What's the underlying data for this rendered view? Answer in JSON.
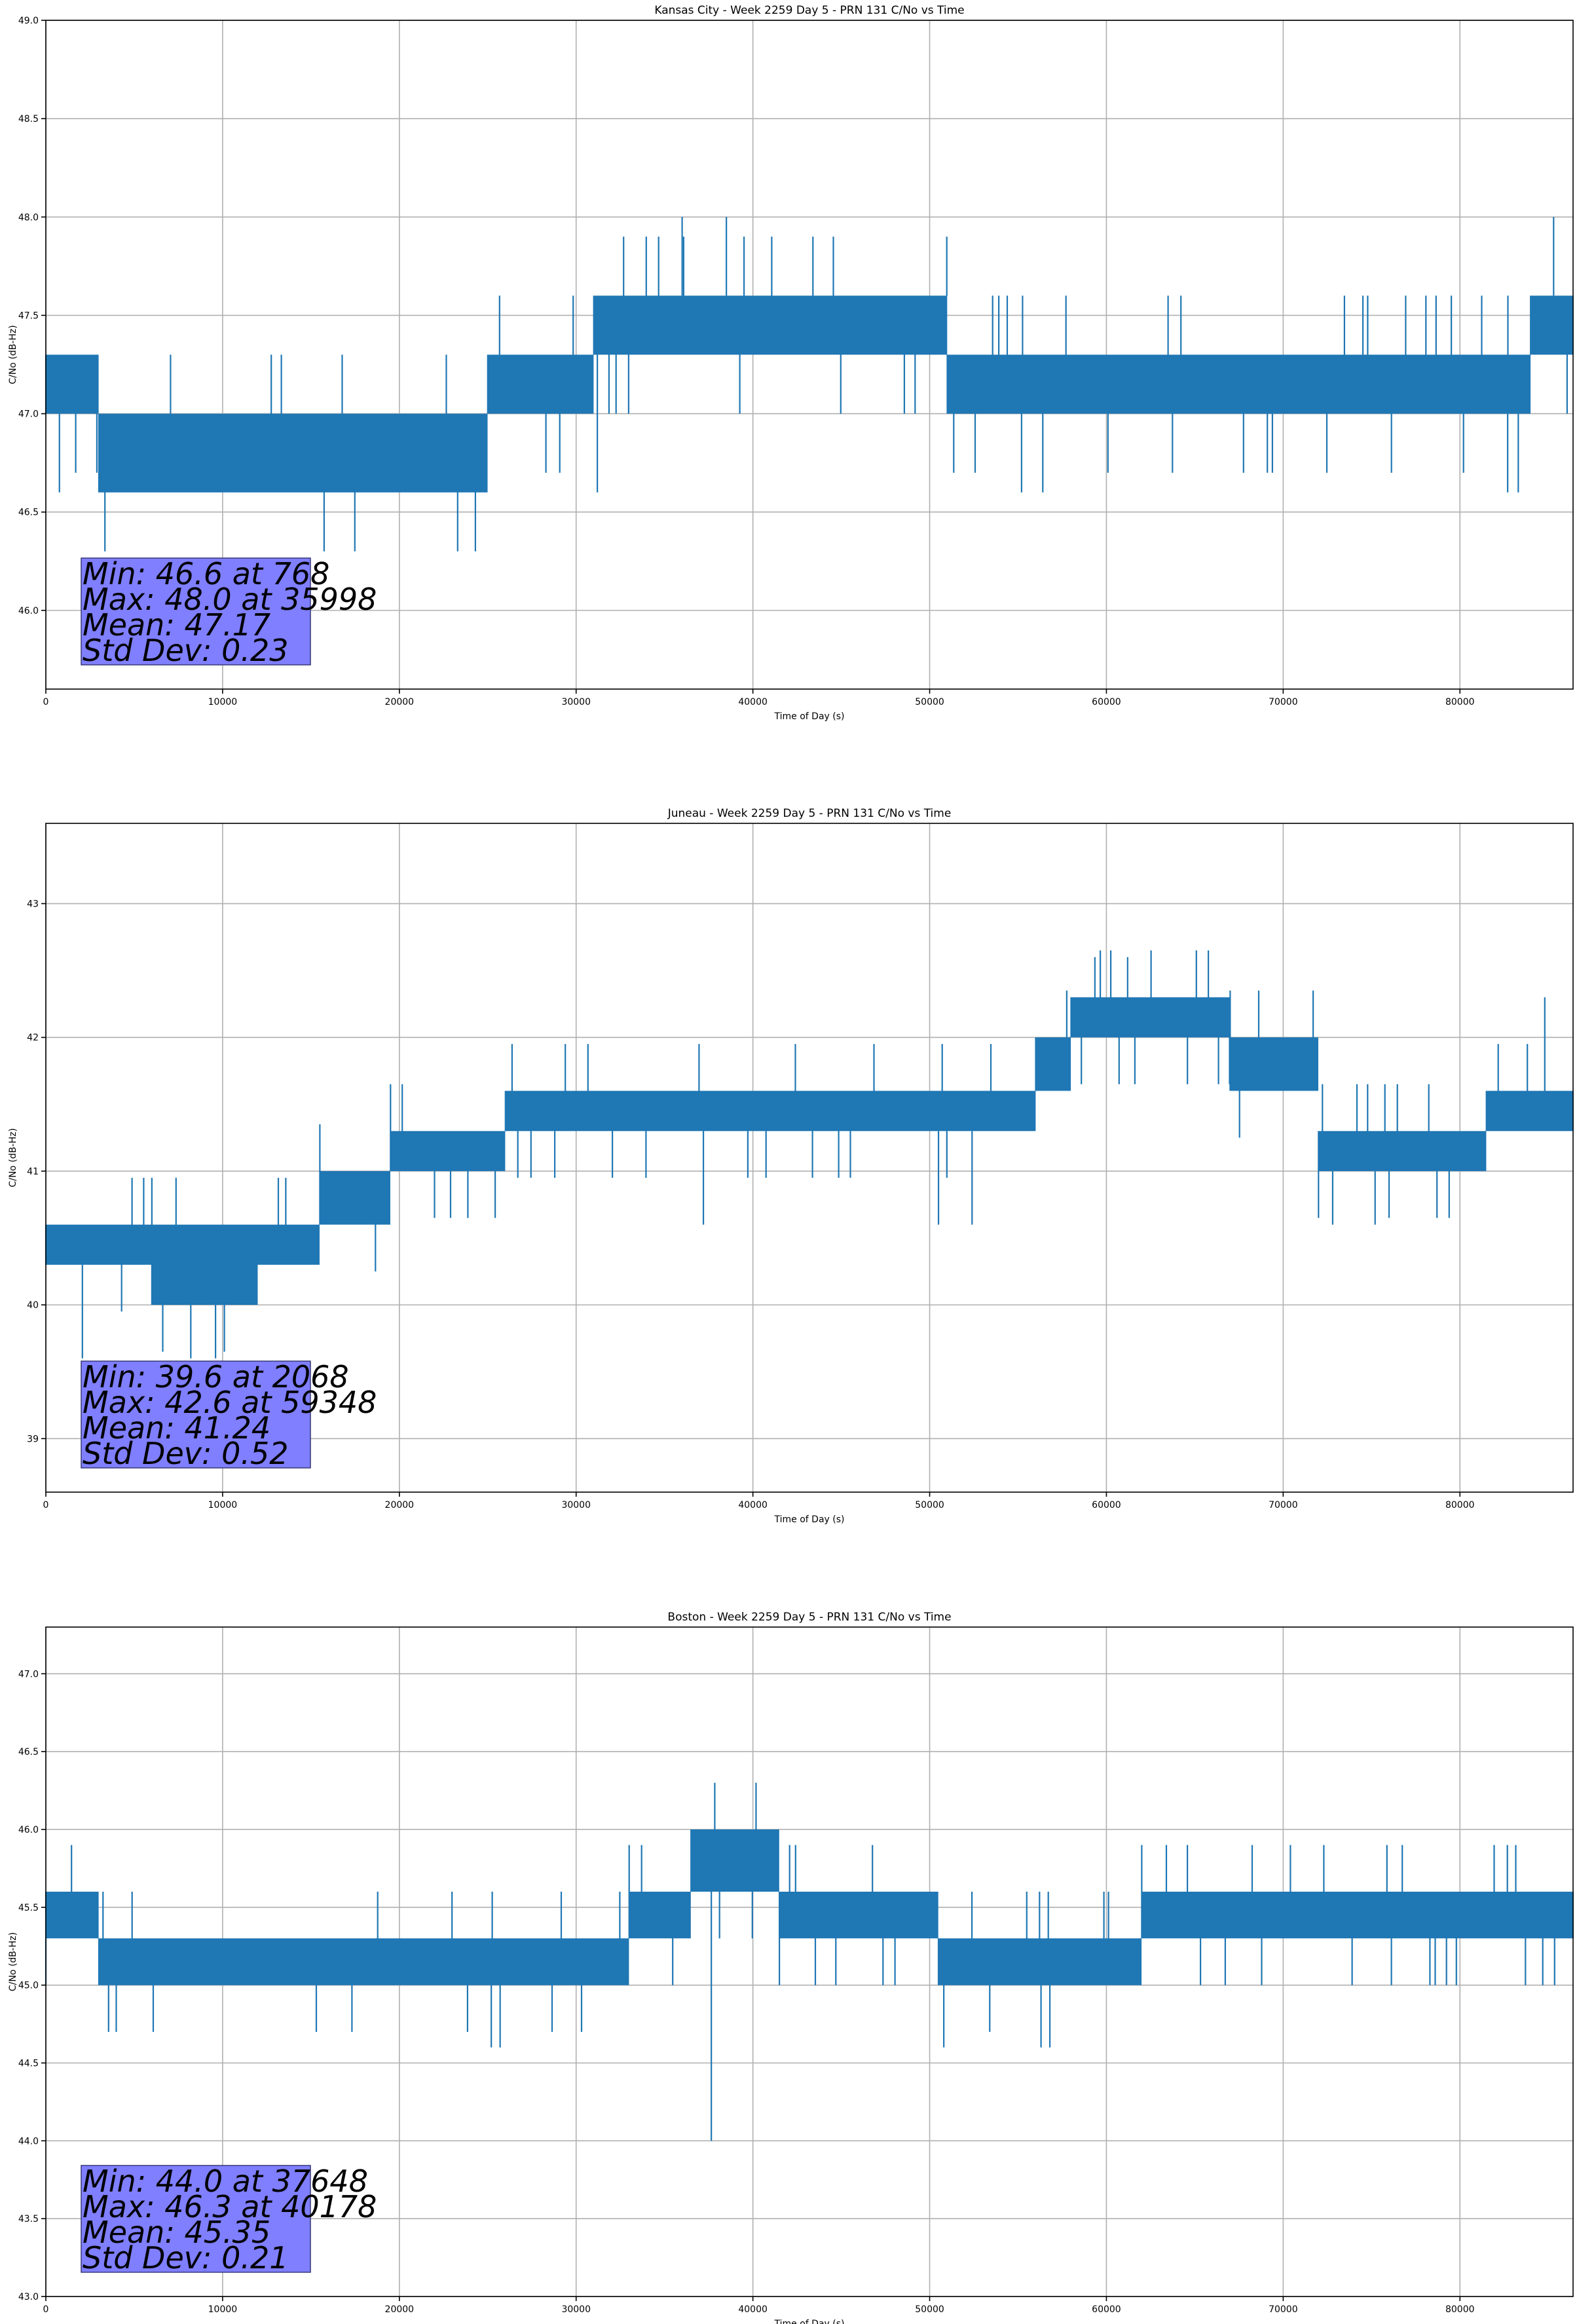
{
  "chart_data": [
    {
      "type": "line",
      "title": "Kansas City - Week 2259 Day 5 - PRN 131 C/No vs Time",
      "xlabel": "Time of Day (s)",
      "ylabel": "C/No (dB-Hz)",
      "xlim": [
        0,
        86400
      ],
      "ylim": [
        45.6,
        49.0
      ],
      "xticks": [
        0,
        10000,
        20000,
        30000,
        40000,
        50000,
        60000,
        70000,
        80000
      ],
      "yticks": [
        46.0,
        46.5,
        47.0,
        47.5,
        48.0,
        48.5,
        49.0
      ],
      "ytick_decimals": 1,
      "grid": true,
      "series": [
        {
          "values_note": "",
          "segments": [
            {
              "x": [
                0,
                3000
              ],
              "low": 47.0,
              "high": 47.3
            },
            {
              "x": [
                3000,
                9000
              ],
              "low": 46.6,
              "high": 47.0
            },
            {
              "x": [
                9000,
                25000
              ],
              "low": 46.6,
              "high": 47.0
            },
            {
              "x": [
                25000,
                31000
              ],
              "low": 47.0,
              "high": 47.3
            },
            {
              "x": [
                31000,
                51000
              ],
              "low": 47.3,
              "high": 47.6
            },
            {
              "x": [
                51000,
                84000
              ],
              "low": 47.0,
              "high": 47.3
            },
            {
              "x": [
                84000,
                86400
              ],
              "low": 47.3,
              "high": 47.6
            }
          ],
          "spikes": [
            {
              "x": 768,
              "y": 46.6
            },
            {
              "x": 35998,
              "y": 48.0
            },
            {
              "x": 38500,
              "y": 48.0
            },
            {
              "x": 85300,
              "y": 48.0
            },
            {
              "x": 31200,
              "y": 46.6
            },
            {
              "x": 55200,
              "y": 46.6
            },
            {
              "x": 56400,
              "y": 46.6
            },
            {
              "x": 82700,
              "y": 46.6
            },
            {
              "x": 83300,
              "y": 46.6
            }
          ]
        }
      ],
      "stats": [
        "Min: 46.6 at 768",
        "Max: 48.0 at 35998",
        "Mean: 47.17",
        "Std Dev: 0.23"
      ]
    },
    {
      "type": "line",
      "title": "Juneau - Week 2259 Day 5 - PRN 131 C/No vs Time",
      "xlabel": "Time of Day (s)",
      "ylabel": "C/No (dB-Hz)",
      "xlim": [
        0,
        86400
      ],
      "ylim": [
        38.6,
        43.6
      ],
      "xticks": [
        0,
        10000,
        20000,
        30000,
        40000,
        50000,
        60000,
        70000,
        80000
      ],
      "yticks": [
        39,
        40,
        41,
        42,
        43
      ],
      "ytick_decimals": 0,
      "grid": true,
      "series": [
        {
          "segments": [
            {
              "x": [
                0,
                6000
              ],
              "low": 40.3,
              "high": 40.6
            },
            {
              "x": [
                6000,
                12000
              ],
              "low": 40.0,
              "high": 40.6
            },
            {
              "x": [
                12000,
                15500
              ],
              "low": 40.3,
              "high": 40.6
            },
            {
              "x": [
                15500,
                19500
              ],
              "low": 40.6,
              "high": 41.0
            },
            {
              "x": [
                19500,
                26000
              ],
              "low": 41.0,
              "high": 41.3
            },
            {
              "x": [
                26000,
                56000
              ],
              "low": 41.3,
              "high": 41.6
            },
            {
              "x": [
                56000,
                58000
              ],
              "low": 41.6,
              "high": 42.0
            },
            {
              "x": [
                58000,
                67000
              ],
              "low": 42.0,
              "high": 42.3
            },
            {
              "x": [
                67000,
                72000
              ],
              "low": 41.6,
              "high": 42.0
            },
            {
              "x": [
                72000,
                81500
              ],
              "low": 41.0,
              "high": 41.3
            },
            {
              "x": [
                81500,
                86400
              ],
              "low": 41.3,
              "high": 41.6
            }
          ],
          "spikes": [
            {
              "x": 2068,
              "y": 39.6
            },
            {
              "x": 8200,
              "y": 39.6
            },
            {
              "x": 9600,
              "y": 39.6
            },
            {
              "x": 59348,
              "y": 42.6
            },
            {
              "x": 61200,
              "y": 42.6
            },
            {
              "x": 37200,
              "y": 40.6
            },
            {
              "x": 50500,
              "y": 40.6
            },
            {
              "x": 52400,
              "y": 40.6
            },
            {
              "x": 72800,
              "y": 40.6
            },
            {
              "x": 75200,
              "y": 40.6
            },
            {
              "x": 84800,
              "y": 42.3
            }
          ]
        }
      ],
      "stats": [
        "Min: 39.6 at 2068",
        "Max: 42.6 at 59348",
        "Mean: 41.24",
        "Std Dev: 0.52"
      ]
    },
    {
      "type": "line",
      "title": "Boston - Week 2259 Day 5 - PRN 131 C/No vs Time",
      "xlabel": "Time of Day (s)",
      "ylabel": "C/No (dB-Hz)",
      "xlim": [
        0,
        86400
      ],
      "ylim": [
        43.0,
        47.3
      ],
      "xticks": [
        0,
        10000,
        20000,
        30000,
        40000,
        50000,
        60000,
        70000,
        80000
      ],
      "yticks": [
        43.0,
        43.5,
        44.0,
        44.5,
        45.0,
        45.5,
        46.0,
        46.5,
        47.0
      ],
      "ytick_decimals": 1,
      "grid": true,
      "series": [
        {
          "segments": [
            {
              "x": [
                0,
                3000
              ],
              "low": 45.3,
              "high": 45.6
            },
            {
              "x": [
                3000,
                20000
              ],
              "low": 45.0,
              "high": 45.3
            },
            {
              "x": [
                20000,
                33000
              ],
              "low": 45.0,
              "high": 45.3
            },
            {
              "x": [
                33000,
                36500
              ],
              "low": 45.3,
              "high": 45.6
            },
            {
              "x": [
                36500,
                41500
              ],
              "low": 45.6,
              "high": 46.0
            },
            {
              "x": [
                41500,
                50500
              ],
              "low": 45.3,
              "high": 45.6
            },
            {
              "x": [
                50500,
                62000
              ],
              "low": 45.0,
              "high": 45.3
            },
            {
              "x": [
                62000,
                86400
              ],
              "low": 45.3,
              "high": 45.6
            }
          ],
          "spikes": [
            {
              "x": 37648,
              "y": 44.0
            },
            {
              "x": 40178,
              "y": 46.3
            },
            {
              "x": 25200,
              "y": 44.6
            },
            {
              "x": 25700,
              "y": 44.6
            },
            {
              "x": 56300,
              "y": 44.6
            },
            {
              "x": 56800,
              "y": 44.6
            },
            {
              "x": 50800,
              "y": 44.6
            }
          ]
        }
      ],
      "stats": [
        "Min: 44.0 at 37648",
        "Max: 46.3 at 40178",
        "Mean: 45.35",
        "Std Dev: 0.21"
      ]
    }
  ]
}
